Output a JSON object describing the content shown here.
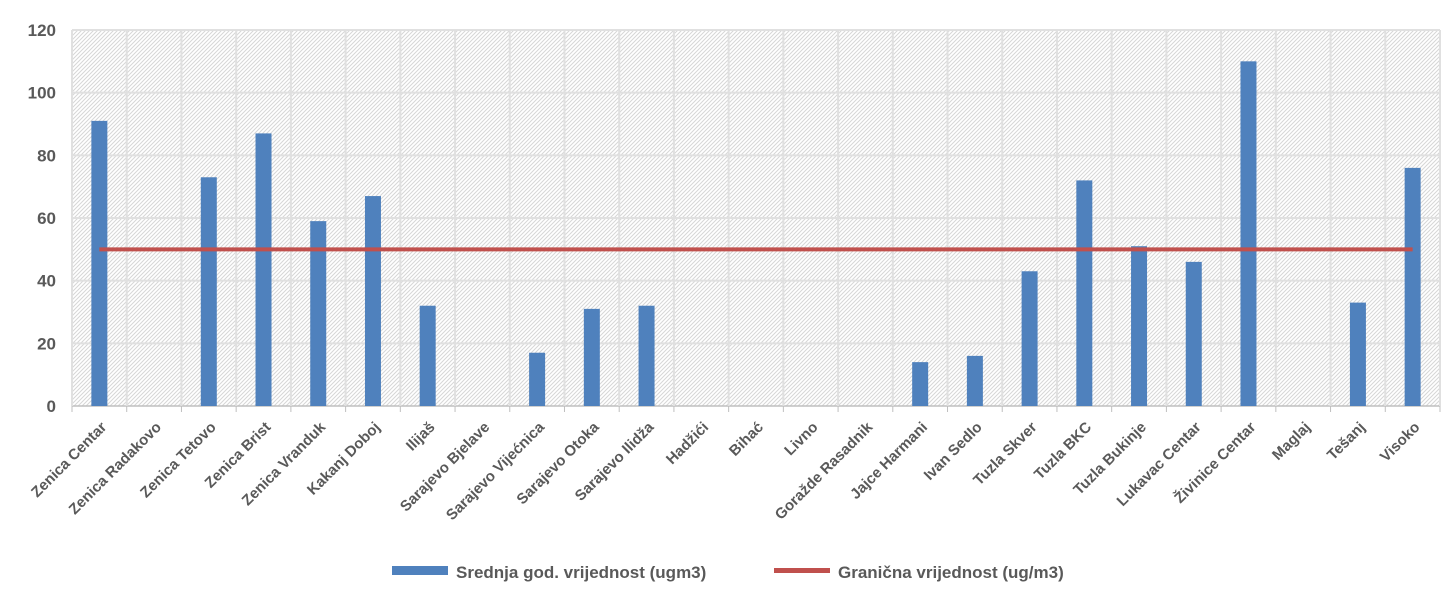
{
  "chart_data": {
    "type": "bar",
    "title": "",
    "xlabel": "",
    "ylabel": "",
    "ylim": [
      0,
      120
    ],
    "yticks": [
      0,
      20,
      40,
      60,
      80,
      100,
      120
    ],
    "grid": true,
    "legend_position": "bottom",
    "categories": [
      "Zenica Centar",
      "Zenica Radakovo",
      "Zenica Tetovo",
      "Zenica Brist",
      "Zenica Vranduk",
      "Kakanj Doboj",
      "Ilijaš",
      "Sarajevo Bjelave",
      "Sarajevo Vijećnica",
      "Sarajevo Otoka",
      "Sarajevo Ilidža",
      "Hadžići",
      "Bihać",
      "Livno",
      "Goražde Rasadnik",
      "Jajce Harmani",
      "Ivan Sedlo",
      "Tuzla Skver",
      "Tuzla BKC",
      "Tuzla Bukinje",
      "Lukavac Centar",
      "Živinice Centar",
      "Maglaj",
      "Tešanj",
      "Visoko"
    ],
    "series": [
      {
        "name": "Srednja god. vrijednost (ugm3)",
        "type": "bar",
        "color": "#4F81BD",
        "values": [
          91,
          0,
          73,
          87,
          59,
          67,
          32,
          0,
          17,
          31,
          32,
          0,
          0,
          0,
          0,
          14,
          16,
          43,
          72,
          51,
          46,
          110,
          0,
          33,
          76
        ]
      },
      {
        "name": "Granična vrijednost (ug/m3)",
        "type": "line",
        "color": "#C0504D",
        "values": [
          50,
          50,
          50,
          50,
          50,
          50,
          50,
          50,
          50,
          50,
          50,
          50,
          50,
          50,
          50,
          50,
          50,
          50,
          50,
          50,
          50,
          50,
          50,
          50,
          50
        ]
      }
    ]
  }
}
